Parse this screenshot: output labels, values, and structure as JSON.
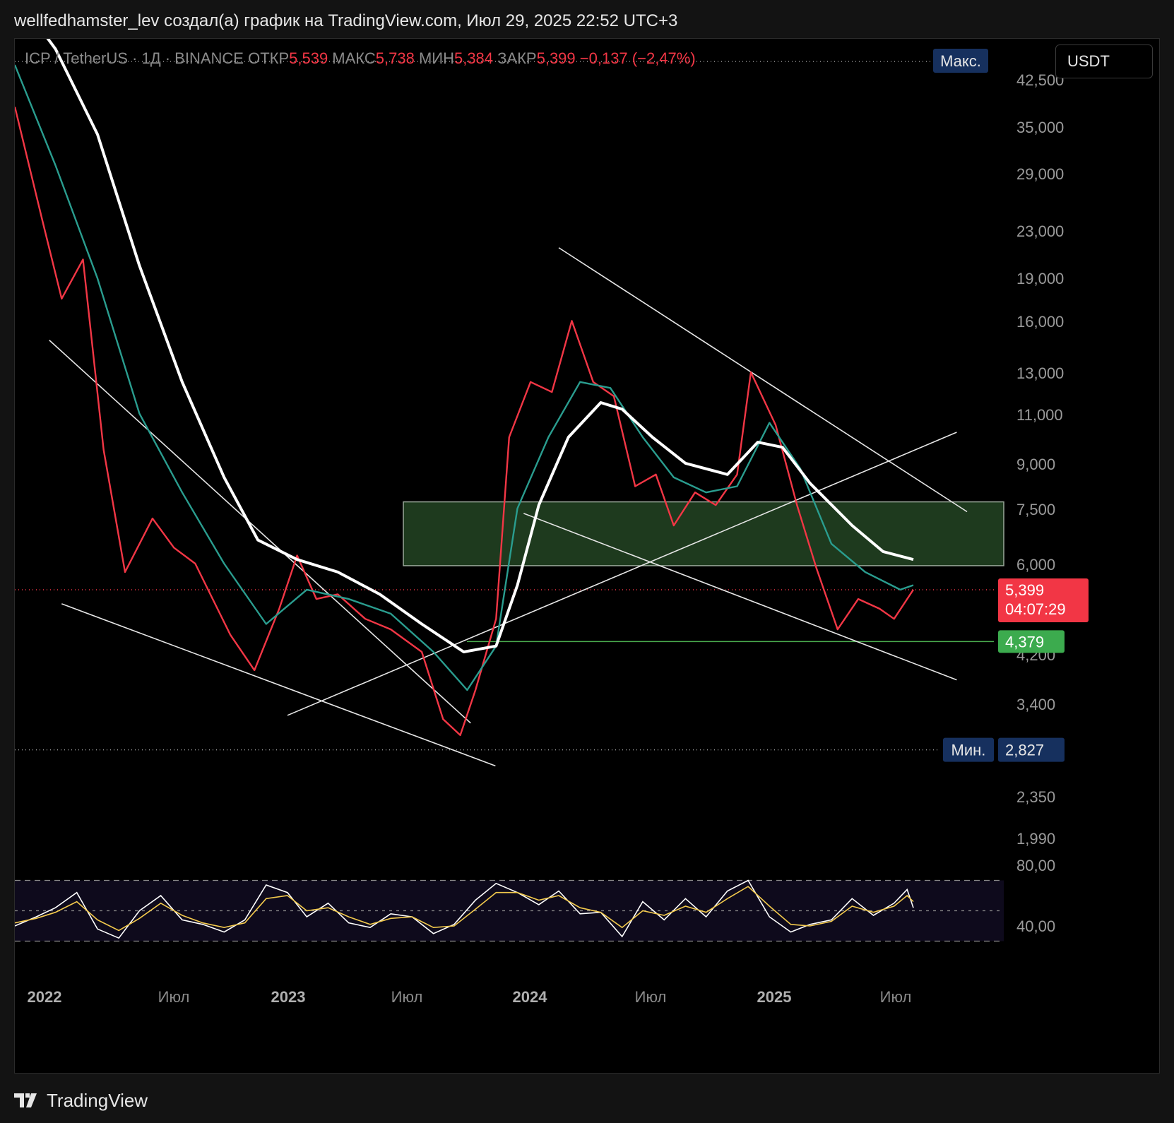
{
  "header": {
    "author_line": "wellfedhamster_lev создал(а) график на TradingView.com, Июл 29, 2025 22:52 UTC+3"
  },
  "legend": {
    "symbol": "ICP / TetherUS · 1Д · BINANCE",
    "open_label": "ОТКР",
    "open": "5,539",
    "high_label": "МАКС",
    "high": "5,738",
    "low_label": "МИН",
    "low": "5,384",
    "close_label": "ЗАКР",
    "close": "5,399",
    "change": "−0,137 (−2,47%)"
  },
  "currency_button": "USDT",
  "badges": {
    "max_label": "Макс.",
    "min_label": "Мин.",
    "min_value": "2,827",
    "last_price": "5,399",
    "countdown": "04:07:29",
    "support_level": "4,379"
  },
  "chart_data": {
    "type": "line",
    "price_axis_ticks": [
      "42,500",
      "35,000",
      "29,000",
      "23,000",
      "19,000",
      "16,000",
      "13,000",
      "11,000",
      "9,000",
      "7,500",
      "6,000",
      "4,200",
      "3,400",
      "2,350",
      "1,990"
    ],
    "rsi_axis_ticks": [
      "80,00",
      "40,00"
    ],
    "time_axis_ticks": [
      "2022",
      "Июл",
      "2023",
      "Июл",
      "2024",
      "Июл",
      "2025",
      "Июл"
    ],
    "price_scale": "log",
    "last_price": 5.399,
    "period_max_price": 42.5,
    "period_min_price": 2.827,
    "support_level": 4.379,
    "zone": {
      "from": 5.95,
      "to": 7.7,
      "color": "#1e3a1e"
    },
    "x_range": [
      "2022-01-01",
      "2025-07-29"
    ],
    "series": [
      {
        "color": "#f23645",
        "points": [
          [
            "2022-01-01",
            38.0
          ],
          [
            "2022-02-10",
            24.0
          ],
          [
            "2022-03-10",
            17.5
          ],
          [
            "2022-04-10",
            20.5
          ],
          [
            "2022-05-10",
            9.5
          ],
          [
            "2022-06-10",
            5.8
          ],
          [
            "2022-07-20",
            7.2
          ],
          [
            "2022-08-20",
            6.4
          ],
          [
            "2022-09-20",
            6.0
          ],
          [
            "2022-11-10",
            4.5
          ],
          [
            "2022-12-15",
            3.9
          ],
          [
            "2023-01-20",
            5.0
          ],
          [
            "2023-02-15",
            6.2
          ],
          [
            "2023-03-15",
            5.2
          ],
          [
            "2023-04-15",
            5.3
          ],
          [
            "2023-05-25",
            4.8
          ],
          [
            "2023-07-01",
            4.6
          ],
          [
            "2023-08-15",
            4.2
          ],
          [
            "2023-09-15",
            3.2
          ],
          [
            "2023-10-10",
            3.0
          ],
          [
            "2023-11-01",
            3.6
          ],
          [
            "2023-12-01",
            4.8
          ],
          [
            "2023-12-20",
            10.0
          ],
          [
            "2024-01-20",
            12.5
          ],
          [
            "2024-02-20",
            12.0
          ],
          [
            "2024-03-20",
            16.0
          ],
          [
            "2024-04-20",
            12.5
          ],
          [
            "2024-05-20",
            11.8
          ],
          [
            "2024-06-20",
            8.2
          ],
          [
            "2024-07-20",
            8.6
          ],
          [
            "2024-08-15",
            7.0
          ],
          [
            "2024-09-15",
            8.0
          ],
          [
            "2024-10-15",
            7.6
          ],
          [
            "2024-11-15",
            8.6
          ],
          [
            "2024-12-05",
            13.0
          ],
          [
            "2025-01-10",
            10.5
          ],
          [
            "2025-02-10",
            7.6
          ],
          [
            "2025-03-10",
            5.9
          ],
          [
            "2025-04-10",
            4.6
          ],
          [
            "2025-05-10",
            5.2
          ],
          [
            "2025-06-10",
            5.0
          ],
          [
            "2025-07-01",
            4.8
          ],
          [
            "2025-07-29",
            5.4
          ]
        ]
      },
      {
        "color": "#2a9d8f",
        "points": [
          [
            "2022-01-01",
            45.0
          ],
          [
            "2022-03-01",
            30.0
          ],
          [
            "2022-05-01",
            19.0
          ],
          [
            "2022-07-01",
            11.0
          ],
          [
            "2022-09-01",
            8.0
          ],
          [
            "2022-11-01",
            6.0
          ],
          [
            "2023-01-01",
            4.7
          ],
          [
            "2023-03-01",
            5.4
          ],
          [
            "2023-05-01",
            5.2
          ],
          [
            "2023-07-01",
            4.9
          ],
          [
            "2023-09-01",
            4.2
          ],
          [
            "2023-10-20",
            3.6
          ],
          [
            "2023-12-01",
            4.3
          ],
          [
            "2024-01-01",
            7.5
          ],
          [
            "2024-02-15",
            10.0
          ],
          [
            "2024-04-01",
            12.5
          ],
          [
            "2024-05-15",
            12.2
          ],
          [
            "2024-07-01",
            10.0
          ],
          [
            "2024-08-15",
            8.5
          ],
          [
            "2024-10-01",
            8.0
          ],
          [
            "2024-11-15",
            8.2
          ],
          [
            "2025-01-01",
            10.6
          ],
          [
            "2025-02-15",
            8.8
          ],
          [
            "2025-04-01",
            6.5
          ],
          [
            "2025-05-20",
            5.8
          ],
          [
            "2025-07-10",
            5.4
          ],
          [
            "2025-07-29",
            5.5
          ]
        ]
      },
      {
        "color": "#ffffff",
        "points": [
          [
            "2022-01-01",
            60.0
          ],
          [
            "2022-03-01",
            48.0
          ],
          [
            "2022-05-01",
            34.0
          ],
          [
            "2022-07-01",
            20.0
          ],
          [
            "2022-09-01",
            12.5
          ],
          [
            "2022-11-01",
            8.5
          ],
          [
            "2022-12-20",
            6.6
          ],
          [
            "2023-02-15",
            6.1
          ],
          [
            "2023-04-15",
            5.8
          ],
          [
            "2023-06-15",
            5.3
          ],
          [
            "2023-08-15",
            4.7
          ],
          [
            "2023-10-15",
            4.2
          ],
          [
            "2023-12-01",
            4.3
          ],
          [
            "2024-01-01",
            5.5
          ],
          [
            "2024-02-01",
            7.6
          ],
          [
            "2024-03-15",
            10.0
          ],
          [
            "2024-05-01",
            11.5
          ],
          [
            "2024-06-01",
            11.2
          ],
          [
            "2024-07-15",
            10.0
          ],
          [
            "2024-09-01",
            9.0
          ],
          [
            "2024-11-01",
            8.6
          ],
          [
            "2024-12-15",
            9.8
          ],
          [
            "2025-01-20",
            9.6
          ],
          [
            "2025-03-01",
            8.3
          ],
          [
            "2025-05-01",
            7.0
          ],
          [
            "2025-06-15",
            6.3
          ],
          [
            "2025-07-29",
            6.1
          ]
        ]
      }
    ],
    "trendlines": [
      {
        "from": [
          "2022-02-20",
          14.8
        ],
        "to": [
          "2023-10-25",
          3.15
        ]
      },
      {
        "from": [
          "2022-03-10",
          5.1
        ],
        "to": [
          "2023-11-30",
          2.65
        ]
      },
      {
        "from": [
          "2023-02-01",
          3.25
        ],
        "to": [
          "2025-09-30",
          10.2
        ]
      },
      {
        "from": [
          "2024-03-01",
          21.5
        ],
        "to": [
          "2025-10-15",
          7.4
        ]
      },
      {
        "from": [
          "2024-01-10",
          7.35
        ],
        "to": [
          "2025-09-30",
          3.75
        ]
      }
    ],
    "rsi": {
      "upper_band": 70,
      "middle": 50,
      "lower_band": 30,
      "series": [
        {
          "color": "#ffffff",
          "points": [
            [
              "2022-01-01",
              40
            ],
            [
              "2022-02-01",
              46
            ],
            [
              "2022-03-01",
              52
            ],
            [
              "2022-04-01",
              62
            ],
            [
              "2022-05-01",
              38
            ],
            [
              "2022-06-01",
              32
            ],
            [
              "2022-07-01",
              50
            ],
            [
              "2022-08-01",
              60
            ],
            [
              "2022-09-01",
              44
            ],
            [
              "2022-10-01",
              41
            ],
            [
              "2022-11-01",
              36
            ],
            [
              "2022-12-01",
              44
            ],
            [
              "2023-01-01",
              67
            ],
            [
              "2023-02-01",
              62
            ],
            [
              "2023-03-01",
              46
            ],
            [
              "2023-04-01",
              55
            ],
            [
              "2023-05-01",
              42
            ],
            [
              "2023-06-01",
              39
            ],
            [
              "2023-07-01",
              48
            ],
            [
              "2023-08-01",
              46
            ],
            [
              "2023-09-01",
              35
            ],
            [
              "2023-10-01",
              41
            ],
            [
              "2023-11-01",
              57
            ],
            [
              "2023-12-01",
              68
            ],
            [
              "2024-01-01",
              62
            ],
            [
              "2024-02-01",
              54
            ],
            [
              "2024-03-01",
              63
            ],
            [
              "2024-04-01",
              48
            ],
            [
              "2024-05-01",
              49
            ],
            [
              "2024-06-01",
              33
            ],
            [
              "2024-07-01",
              56
            ],
            [
              "2024-08-01",
              44
            ],
            [
              "2024-09-01",
              58
            ],
            [
              "2024-10-01",
              46
            ],
            [
              "2024-11-01",
              63
            ],
            [
              "2024-12-01",
              70
            ],
            [
              "2025-01-01",
              46
            ],
            [
              "2025-02-01",
              36
            ],
            [
              "2025-03-01",
              41
            ],
            [
              "2025-04-01",
              44
            ],
            [
              "2025-05-01",
              58
            ],
            [
              "2025-06-01",
              47
            ],
            [
              "2025-07-01",
              55
            ],
            [
              "2025-07-20",
              64
            ],
            [
              "2025-07-29",
              52
            ]
          ]
        },
        {
          "color": "#f2c94c",
          "points": [
            [
              "2022-01-01",
              42
            ],
            [
              "2022-02-01",
              45
            ],
            [
              "2022-03-01",
              49
            ],
            [
              "2022-04-01",
              56
            ],
            [
              "2022-05-01",
              44
            ],
            [
              "2022-06-01",
              37
            ],
            [
              "2022-07-01",
              45
            ],
            [
              "2022-08-01",
              55
            ],
            [
              "2022-09-01",
              47
            ],
            [
              "2022-10-01",
              42
            ],
            [
              "2022-11-01",
              39
            ],
            [
              "2022-12-01",
              42
            ],
            [
              "2023-01-01",
              58
            ],
            [
              "2023-02-01",
              60
            ],
            [
              "2023-03-01",
              50
            ],
            [
              "2023-04-01",
              52
            ],
            [
              "2023-05-01",
              46
            ],
            [
              "2023-06-01",
              41
            ],
            [
              "2023-07-01",
              45
            ],
            [
              "2023-08-01",
              46
            ],
            [
              "2023-09-01",
              39
            ],
            [
              "2023-10-01",
              40
            ],
            [
              "2023-11-01",
              51
            ],
            [
              "2023-12-01",
              62
            ],
            [
              "2024-01-01",
              62
            ],
            [
              "2024-02-01",
              57
            ],
            [
              "2024-03-01",
              60
            ],
            [
              "2024-04-01",
              52
            ],
            [
              "2024-05-01",
              49
            ],
            [
              "2024-06-01",
              39
            ],
            [
              "2024-07-01",
              50
            ],
            [
              "2024-08-01",
              47
            ],
            [
              "2024-09-01",
              53
            ],
            [
              "2024-10-01",
              49
            ],
            [
              "2024-11-01",
              58
            ],
            [
              "2024-12-01",
              66
            ],
            [
              "2025-01-01",
              53
            ],
            [
              "2025-02-01",
              41
            ],
            [
              "2025-03-01",
              40
            ],
            [
              "2025-04-01",
              43
            ],
            [
              "2025-05-01",
              53
            ],
            [
              "2025-06-01",
              49
            ],
            [
              "2025-07-01",
              53
            ],
            [
              "2025-07-20",
              60
            ],
            [
              "2025-07-29",
              56
            ]
          ]
        }
      ]
    }
  }
}
